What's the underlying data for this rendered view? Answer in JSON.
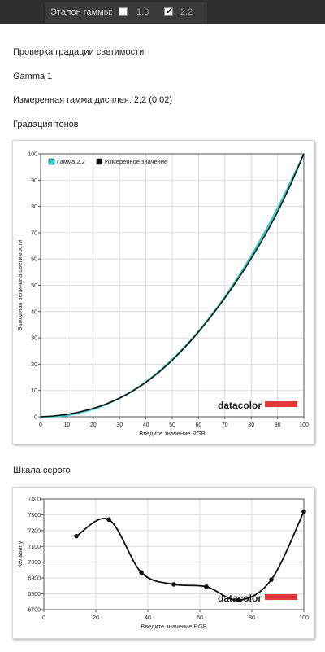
{
  "header": {
    "gamma_label": "Эталон гаммы:",
    "options": [
      {
        "label": "1.8",
        "checked": false
      },
      {
        "label": "2.2",
        "checked": true
      }
    ],
    "check_mark": "✔"
  },
  "info": {
    "title": "Проверка градации светимости",
    "display_name": "Gamma 1",
    "measured_gamma": "Измеренная гамма дисплея: 2,2 (0,02)",
    "tonal_heading": "Градация тонов",
    "gray_heading": "Шкала серого"
  },
  "colors": {
    "reference_line": "#2bd0d0",
    "measured_line": "#111111",
    "logo_bar": "#e2393b",
    "topbar_bg": "#2e2e2e"
  },
  "chart_data": [
    {
      "type": "line",
      "xlabel": "Введите значение RGB",
      "ylabel": "Выходная величина светимости",
      "xlim": [
        0,
        100
      ],
      "ylim": [
        0,
        100
      ],
      "xticks": [
        0,
        10,
        20,
        30,
        40,
        50,
        60,
        70,
        80,
        90,
        100
      ],
      "yticks": [
        0,
        10,
        20,
        30,
        40,
        50,
        60,
        70,
        80,
        90,
        100
      ],
      "grid": true,
      "legend_position": "top-left",
      "series": [
        {
          "name": "Гамма 2.2",
          "color": "#2bd0d0",
          "x": [
            0,
            5,
            10,
            15,
            20,
            25,
            30,
            35,
            40,
            45,
            50,
            55,
            60,
            65,
            70,
            75,
            80,
            85,
            90,
            95,
            100
          ],
          "y": [
            0,
            0.1,
            0.6,
            1.6,
            2.9,
            4.8,
            7.1,
            9.9,
            13.3,
            17.3,
            21.8,
            26.9,
            32.5,
            38.8,
            45.6,
            53.1,
            61.2,
            69.9,
            79.3,
            89.3,
            100
          ]
        },
        {
          "name": "Измеренное значение",
          "color": "#111111",
          "x": [
            0,
            5,
            10,
            15,
            20,
            25,
            30,
            35,
            40,
            45,
            50,
            55,
            60,
            65,
            70,
            75,
            80,
            85,
            90,
            95,
            100
          ],
          "y": [
            0,
            0.3,
            0.9,
            1.9,
            3.2,
            4.9,
            7.1,
            9.8,
            13.1,
            17.0,
            21.5,
            26.6,
            32.3,
            38.5,
            45.2,
            52.4,
            60.2,
            68.6,
            77.9,
            88.4,
            100
          ]
        }
      ],
      "logo": "datacolor"
    },
    {
      "type": "line",
      "xlabel": "Введите значение RGB",
      "ylabel": "Кельвину",
      "xlim": [
        0,
        100
      ],
      "ylim": [
        6700,
        7400
      ],
      "xticks": [
        0,
        20,
        40,
        60,
        80,
        100
      ],
      "yticks": [
        6700,
        6800,
        6900,
        7000,
        7100,
        7200,
        7300,
        7400
      ],
      "grid": true,
      "series": [
        {
          "name": "",
          "color": "#111111",
          "x": [
            12.5,
            25,
            37.5,
            50,
            62.5,
            75,
            87.5,
            100
          ],
          "y": [
            7165,
            7270,
            6935,
            6860,
            6845,
            6760,
            6890,
            7320
          ]
        }
      ],
      "logo": "datacolor"
    }
  ]
}
